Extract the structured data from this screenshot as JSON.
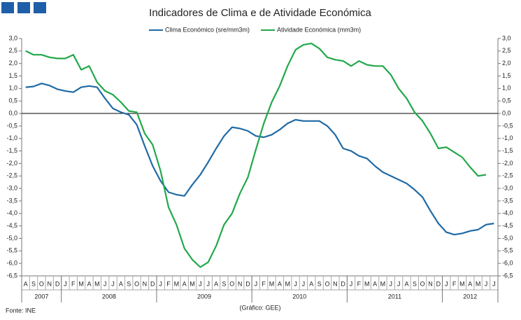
{
  "chart_data": {
    "type": "line",
    "title": "Indicadores de Clima  e de Atividade Económica",
    "categories": [
      "A",
      "S",
      "O",
      "N",
      "D",
      "J",
      "F",
      "M",
      "A",
      "M",
      "J",
      "J",
      "A",
      "S",
      "O",
      "N",
      "D",
      "J",
      "F",
      "M",
      "A",
      "M",
      "J",
      "J",
      "A",
      "S",
      "O",
      "N",
      "D",
      "J",
      "F",
      "M",
      "A",
      "M",
      "J",
      "J",
      "A",
      "S",
      "O",
      "N",
      "D",
      "J",
      "F",
      "M",
      "A",
      "M",
      "J",
      "J",
      "A",
      "S",
      "O",
      "N",
      "D",
      "J",
      "F",
      "M",
      "A",
      "M",
      "J",
      "J"
    ],
    "years": [
      "2007",
      "2008",
      "2009",
      "2010",
      "2011",
      "2012"
    ],
    "series": [
      {
        "name": "Clima Económico (sre/mm3m)",
        "color": "#1f6aa5",
        "values": [
          1.05,
          1.08,
          1.2,
          1.12,
          0.97,
          0.9,
          0.85,
          1.05,
          1.1,
          1.05,
          0.6,
          0.2,
          0.05,
          -0.05,
          -0.45,
          -1.3,
          -2.1,
          -2.7,
          -3.15,
          -3.25,
          -3.3,
          -2.85,
          -2.45,
          -1.95,
          -1.4,
          -0.9,
          -0.55,
          -0.6,
          -0.7,
          -0.9,
          -0.95,
          -0.85,
          -0.65,
          -0.4,
          -0.25,
          -0.3,
          -0.3,
          -0.3,
          -0.5,
          -0.85,
          -1.4,
          -1.5,
          -1.7,
          -1.8,
          -2.1,
          -2.35,
          -2.5,
          -2.65,
          -2.8,
          -3.05,
          -3.35,
          -3.9,
          -4.4,
          -4.75,
          -4.85,
          -4.8,
          -4.7,
          -4.65,
          -4.45,
          -4.4
        ]
      },
      {
        "name": "Atividade Económica (mm3m)",
        "color": "#22a84a",
        "values": [
          2.5,
          2.35,
          2.35,
          2.25,
          2.2,
          2.2,
          2.35,
          1.75,
          1.9,
          1.25,
          0.9,
          0.75,
          0.45,
          0.1,
          0.05,
          -0.8,
          -1.25,
          -2.3,
          -3.75,
          -4.45,
          -5.4,
          -5.85,
          -6.15,
          -5.95,
          -5.3,
          -4.45,
          -4.0,
          -3.2,
          -2.55,
          -1.45,
          -0.4,
          0.45,
          1.1,
          1.9,
          2.55,
          2.75,
          2.8,
          2.6,
          2.25,
          2.15,
          2.1,
          1.9,
          2.1,
          1.95,
          1.9,
          1.9,
          1.55,
          1.0,
          0.6,
          0.05,
          -0.3,
          -0.8,
          -1.4,
          -1.35,
          -1.55,
          -1.75,
          -2.15,
          -2.5,
          -2.45,
          null
        ]
      }
    ],
    "ylim": [
      -6.5,
      3.0
    ],
    "yticks": [
      {
        "value": 3,
        "label": "3,0"
      },
      {
        "value": 2.5,
        "label": "2,5"
      },
      {
        "value": 2,
        "label": "2,0"
      },
      {
        "value": 1.5,
        "label": "1,5"
      },
      {
        "value": 1,
        "label": "1,0"
      },
      {
        "value": 0.5,
        "label": "0,5"
      },
      {
        "value": 0,
        "label": "0,0"
      },
      {
        "value": -0.5,
        "label": "-0,5"
      },
      {
        "value": -1,
        "label": "-1,0"
      },
      {
        "value": -1.5,
        "label": "-1,5"
      },
      {
        "value": -2,
        "label": "-2,0"
      },
      {
        "value": -2.5,
        "label": "-2,5"
      },
      {
        "value": -3,
        "label": "-3,0"
      },
      {
        "value": -3.5,
        "label": "-3,5"
      },
      {
        "value": -4,
        "label": "-4,0"
      },
      {
        "value": -4.5,
        "label": "-4,5"
      },
      {
        "value": -5,
        "label": "-5,0"
      },
      {
        "value": -5.5,
        "label": "-5,5"
      },
      {
        "value": -6,
        "label": "-6,0"
      },
      {
        "value": -6.5,
        "label": "-6,5"
      }
    ],
    "y2lim": [
      -6.5,
      3.0
    ],
    "y2ticks": [
      {
        "value": 3,
        "label": "3,0"
      },
      {
        "value": 2.5,
        "label": "2,5"
      },
      {
        "value": 2,
        "label": "2,0"
      },
      {
        "value": 1.5,
        "label": "1,5"
      },
      {
        "value": 1,
        "label": "1,0"
      },
      {
        "value": 0.5,
        "label": "0,5"
      },
      {
        "value": 0,
        "label": "0,0"
      },
      {
        "value": -0.5,
        "label": "-0,5"
      },
      {
        "value": -1,
        "label": "-1,0"
      },
      {
        "value": -1.5,
        "label": "-1,5"
      },
      {
        "value": -2,
        "label": "-2,0"
      },
      {
        "value": -2.5,
        "label": "-2,5"
      },
      {
        "value": -3,
        "label": "-3,0"
      },
      {
        "value": -3.5,
        "label": "-3,5"
      },
      {
        "value": -4,
        "label": "-4,0"
      },
      {
        "value": -4.5,
        "label": "-4,5"
      },
      {
        "value": -5,
        "label": "-5,0"
      },
      {
        "value": -5.5,
        "label": "-5,5"
      },
      {
        "value": -6,
        "label": "-6,0"
      },
      {
        "value": -6.5,
        "label": "-6,5"
      }
    ],
    "source": "Fonte: INE",
    "credit": "(Gráfico: GEE)",
    "legend": "top"
  }
}
